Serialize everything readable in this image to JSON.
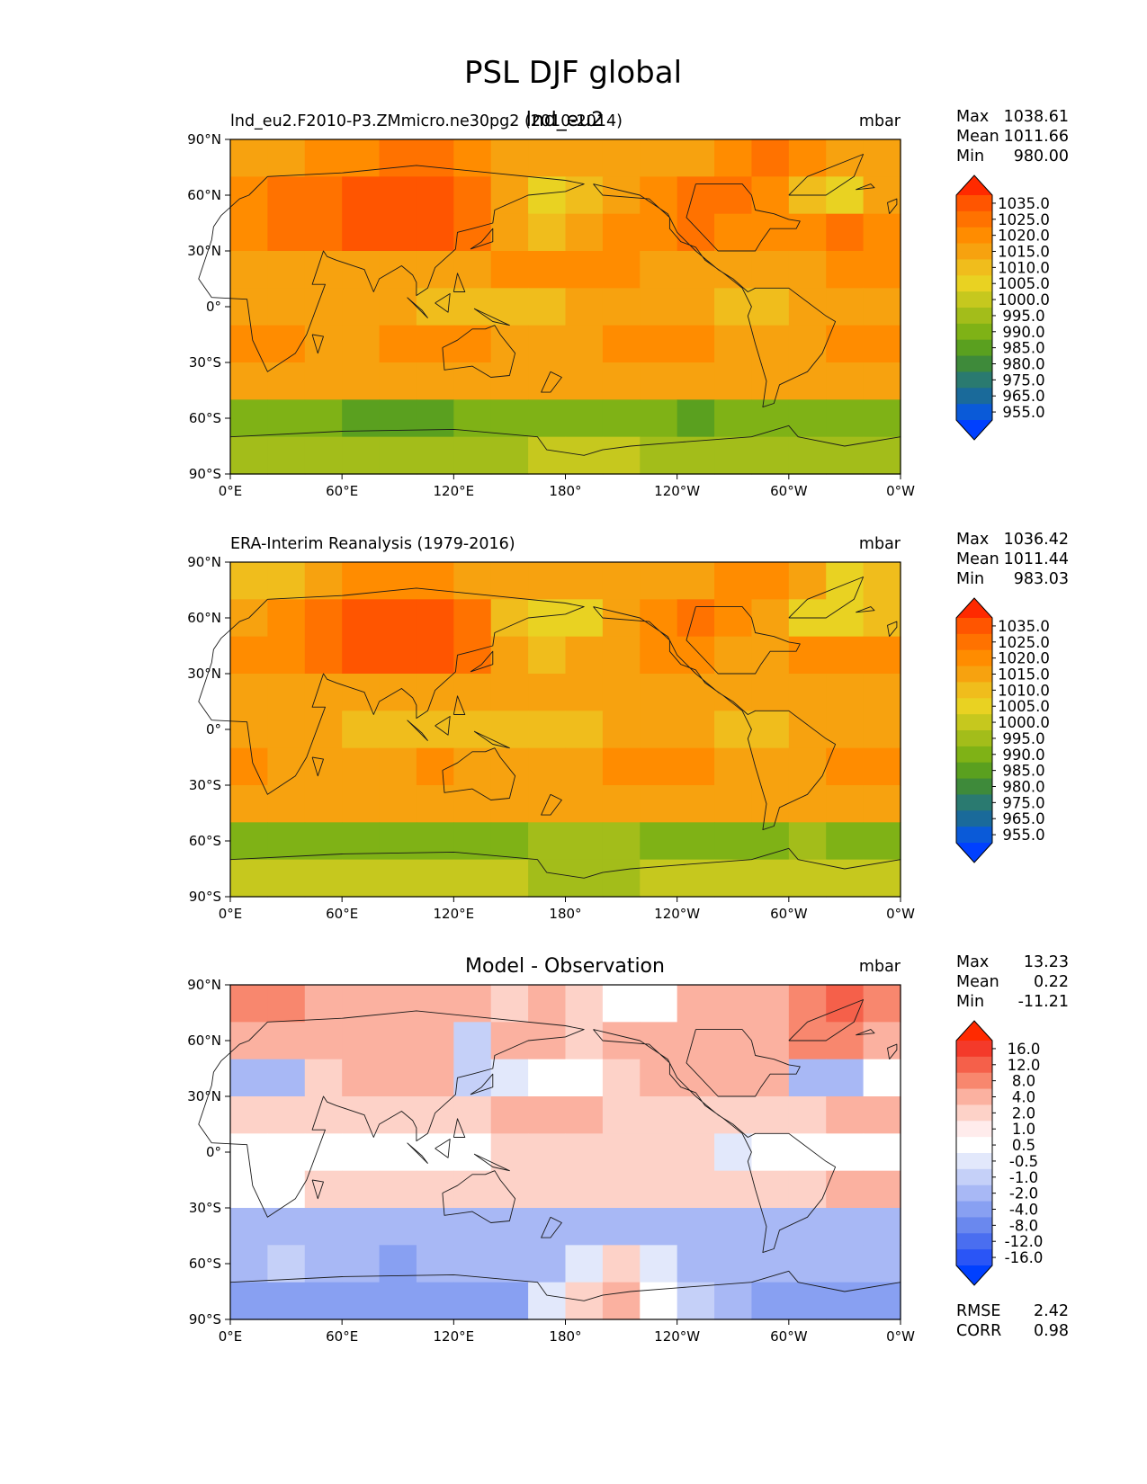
{
  "title": "PSL DJF global",
  "colors": {
    "land_outline": "#1a1a1a"
  },
  "chart_data": [
    {
      "type": "heatmap",
      "panel": "test",
      "title_left": "lnd_eu2.F2010-P3.ZMmicro.ne30pg2 (2010-2014)",
      "title_center": "lnd_eu2",
      "units": "mbar",
      "stats": [
        {
          "label": "Max",
          "value": "1038.61"
        },
        {
          "label": "Mean",
          "value": "1011.66"
        },
        {
          "label": "Min",
          "value": "980.00"
        }
      ],
      "colorbar_levels": [
        "1035.0",
        "1025.0",
        "1020.0",
        "1015.0",
        "1010.0",
        "1005.0",
        "1000.0",
        "995.0",
        "990.0",
        "985.0",
        "980.0",
        "975.0",
        "965.0",
        "955.0"
      ],
      "colorbar_colors": [
        "#ff2a00",
        "#ff5500",
        "#ff7200",
        "#ff8c00",
        "#f7a20f",
        "#f0bd1c",
        "#e9d222",
        "#c6c81e",
        "#a3bd1a",
        "#7fb216",
        "#5aa01f",
        "#3e8a3a",
        "#2a7a70",
        "#1a6a9a",
        "#0a5ad8",
        "#0040ff"
      ],
      "grid": {
        "rows": 9,
        "cols": 18,
        "lats": [
          80,
          60,
          40,
          20,
          0,
          -20,
          -40,
          -60,
          -80
        ],
        "lons": [
          10,
          30,
          50,
          70,
          90,
          110,
          130,
          150,
          170,
          190,
          210,
          230,
          250,
          270,
          290,
          310,
          330,
          350
        ],
        "values": [
          [
            1010,
            1012,
            1015,
            1018,
            1020,
            1020,
            1016,
            1013,
            1014,
            1012,
            1010,
            1010,
            1014,
            1018,
            1020,
            1016,
            1013,
            1011
          ],
          [
            1016,
            1020,
            1024,
            1028,
            1032,
            1030,
            1024,
            1010,
            1002,
            1005,
            1012,
            1018,
            1022,
            1020,
            1017,
            1008,
            1004,
            1010
          ],
          [
            1018,
            1020,
            1022,
            1028,
            1030,
            1028,
            1022,
            1014,
            1008,
            1010,
            1015,
            1018,
            1020,
            1016,
            1016,
            1018,
            1020,
            1018
          ],
          [
            1014,
            1014,
            1012,
            1012,
            1012,
            1013,
            1014,
            1016,
            1016,
            1016,
            1015,
            1014,
            1014,
            1012,
            1012,
            1013,
            1016,
            1015
          ],
          [
            1012,
            1011,
            1010,
            1010,
            1010,
            1008,
            1007,
            1008,
            1009,
            1010,
            1011,
            1011,
            1011,
            1009,
            1009,
            1011,
            1012,
            1012
          ],
          [
            1016,
            1015,
            1014,
            1014,
            1016,
            1016,
            1015,
            1014,
            1013,
            1014,
            1016,
            1016,
            1016,
            1014,
            1012,
            1014,
            1016,
            1016
          ],
          [
            1012,
            1012,
            1012,
            1012,
            1012,
            1012,
            1012,
            1012,
            1012,
            1012,
            1012,
            1012,
            1012,
            1012,
            1012,
            1012,
            1012,
            1012
          ],
          [
            985,
            986,
            986,
            984,
            983,
            984,
            985,
            986,
            986,
            986,
            986,
            985,
            984,
            985,
            986,
            987,
            986,
            985
          ],
          [
            993,
            993,
            992,
            993,
            994,
            993,
            993,
            993,
            995,
            996,
            995,
            994,
            993,
            993,
            994,
            994,
            993,
            993
          ]
        ]
      }
    },
    {
      "type": "heatmap",
      "panel": "reference",
      "title_left": "ERA-Interim Reanalysis (1979-2016)",
      "title_center": "",
      "units": "mbar",
      "stats": [
        {
          "label": "Max",
          "value": "1036.42"
        },
        {
          "label": "Mean",
          "value": "1011.44"
        },
        {
          "label": "Min",
          "value": "983.03"
        }
      ],
      "colorbar_levels": [
        "1035.0",
        "1025.0",
        "1020.0",
        "1015.0",
        "1010.0",
        "1005.0",
        "1000.0",
        "995.0",
        "990.0",
        "985.0",
        "980.0",
        "975.0",
        "965.0",
        "955.0"
      ],
      "colorbar_colors": [
        "#ff2a00",
        "#ff5500",
        "#ff7200",
        "#ff8c00",
        "#f7a20f",
        "#f0bd1c",
        "#e9d222",
        "#c6c81e",
        "#a3bd1a",
        "#7fb216",
        "#5aa01f",
        "#3e8a3a",
        "#2a7a70",
        "#1a6a9a",
        "#0a5ad8",
        "#0040ff"
      ],
      "grid": {
        "rows": 9,
        "cols": 18,
        "lats": [
          80,
          60,
          40,
          20,
          0,
          -20,
          -40,
          -60,
          -80
        ],
        "lons": [
          10,
          30,
          50,
          70,
          90,
          110,
          130,
          150,
          170,
          190,
          210,
          230,
          250,
          270,
          290,
          310,
          330,
          350
        ],
        "values": [
          [
            1006,
            1008,
            1012,
            1016,
            1018,
            1018,
            1014,
            1012,
            1012,
            1011,
            1010,
            1010,
            1012,
            1016,
            1018,
            1010,
            1004,
            1006
          ],
          [
            1014,
            1018,
            1022,
            1026,
            1030,
            1028,
            1022,
            1008,
            1000,
            1004,
            1010,
            1016,
            1020,
            1018,
            1014,
            1004,
            1000,
            1008
          ],
          [
            1016,
            1018,
            1020,
            1026,
            1028,
            1026,
            1020,
            1013,
            1008,
            1010,
            1014,
            1016,
            1018,
            1014,
            1014,
            1016,
            1018,
            1016
          ],
          [
            1013,
            1013,
            1011,
            1011,
            1011,
            1012,
            1013,
            1014,
            1014,
            1014,
            1014,
            1013,
            1013,
            1011,
            1011,
            1012,
            1014,
            1013
          ],
          [
            1011,
            1010,
            1010,
            1009,
            1009,
            1007,
            1006,
            1007,
            1008,
            1009,
            1010,
            1010,
            1010,
            1008,
            1008,
            1010,
            1011,
            1011
          ],
          [
            1015,
            1014,
            1013,
            1013,
            1014,
            1015,
            1014,
            1013,
            1012,
            1013,
            1015,
            1015,
            1015,
            1013,
            1011,
            1013,
            1015,
            1015
          ],
          [
            1010,
            1010,
            1010,
            1010,
            1010,
            1010,
            1010,
            1010,
            1010,
            1010,
            1010,
            1010,
            1010,
            1010,
            1010,
            1010,
            1010,
            1010
          ],
          [
            988,
            987,
            988,
            987,
            987,
            988,
            988,
            989,
            990,
            990,
            990,
            989,
            989,
            989,
            989,
            990,
            989,
            988
          ],
          [
            998,
            998,
            997,
            998,
            999,
            998,
            998,
            998,
            994,
            992,
            993,
            996,
            998,
            998,
            999,
            999,
            998,
            998
          ]
        ]
      }
    },
    {
      "type": "heatmap",
      "panel": "difference",
      "title_left": "",
      "title_center": "Model - Observation",
      "units": "mbar",
      "stats": [
        {
          "label": "Max",
          "value": "13.23"
        },
        {
          "label": "Mean",
          "value": "0.22"
        },
        {
          "label": "Min",
          "value": "-11.21"
        }
      ],
      "extra_stats": [
        {
          "label": "RMSE",
          "value": "2.42"
        },
        {
          "label": "CORR",
          "value": "0.98"
        }
      ],
      "colorbar_levels": [
        "16.0",
        "12.0",
        "8.0",
        "4.0",
        "2.0",
        "1.0",
        "0.5",
        "-0.5",
        "-1.0",
        "-2.0",
        "-4.0",
        "-8.0",
        "-12.0",
        "-16.0"
      ],
      "colorbar_colors": [
        "#ff2a00",
        "#f43a2a",
        "#f5604a",
        "#f8876e",
        "#fbb1a0",
        "#fdd2c8",
        "#ffecec",
        "#ffffff",
        "#e2e8fb",
        "#c5d0f8",
        "#a8b8f5",
        "#88a0f2",
        "#6a88ee",
        "#4a6ef0",
        "#2a55f6",
        "#0040ff"
      ],
      "grid": {
        "rows": 9,
        "cols": 18,
        "lats": [
          80,
          60,
          40,
          20,
          0,
          -20,
          -40,
          -60,
          -80
        ],
        "lons": [
          10,
          30,
          50,
          70,
          90,
          110,
          130,
          150,
          170,
          190,
          210,
          230,
          250,
          270,
          290,
          310,
          330,
          350
        ],
        "values": [
          [
            4,
            4,
            3,
            3,
            3,
            3,
            2,
            1,
            2,
            1,
            0,
            0,
            2,
            2,
            2,
            6,
            9,
            5
          ],
          [
            2,
            2,
            2,
            2,
            2,
            2,
            -2,
            2,
            2,
            1,
            2,
            2,
            2,
            2,
            3,
            4,
            4,
            2
          ],
          [
            -3,
            -3,
            1,
            2,
            3,
            2,
            -2,
            -1,
            0,
            0,
            1,
            2,
            2,
            2,
            2,
            -4,
            -3,
            0
          ],
          [
            1,
            1,
            1,
            1,
            1,
            1,
            1,
            2,
            2,
            2,
            1,
            1,
            1,
            1,
            1,
            1,
            2,
            2
          ],
          [
            0,
            0,
            0,
            0,
            0,
            0,
            0,
            1,
            1,
            1,
            1,
            1,
            1,
            -1,
            0,
            0,
            0,
            0
          ],
          [
            0,
            0,
            1,
            1,
            1,
            1,
            1,
            1,
            1,
            1,
            1,
            1,
            1,
            1,
            1,
            1,
            2,
            2
          ],
          [
            -3,
            -3,
            -3,
            -3,
            -3,
            -3,
            -3,
            -3,
            -3,
            -3,
            -3,
            -3,
            -3,
            -3,
            -3,
            -3,
            -3,
            -3
          ],
          [
            -4,
            -2,
            -4,
            -4,
            -5,
            -4,
            -4,
            -4,
            -3,
            -1,
            1,
            -1,
            -4,
            -4,
            -4,
            -4,
            -4,
            -4
          ],
          [
            -5,
            -5,
            -5,
            -5,
            -5,
            -5,
            -5,
            -5,
            -1,
            1,
            2,
            0,
            -2,
            -4,
            -5,
            -5,
            -5,
            -5
          ]
        ]
      }
    }
  ],
  "axes": {
    "yticks": [
      "90°N",
      "60°N",
      "30°N",
      "0°",
      "30°S",
      "60°S",
      "90°S"
    ],
    "xticks": [
      "0°E",
      "60°E",
      "120°E",
      "180°",
      "120°W",
      "60°W",
      "0°W"
    ]
  }
}
